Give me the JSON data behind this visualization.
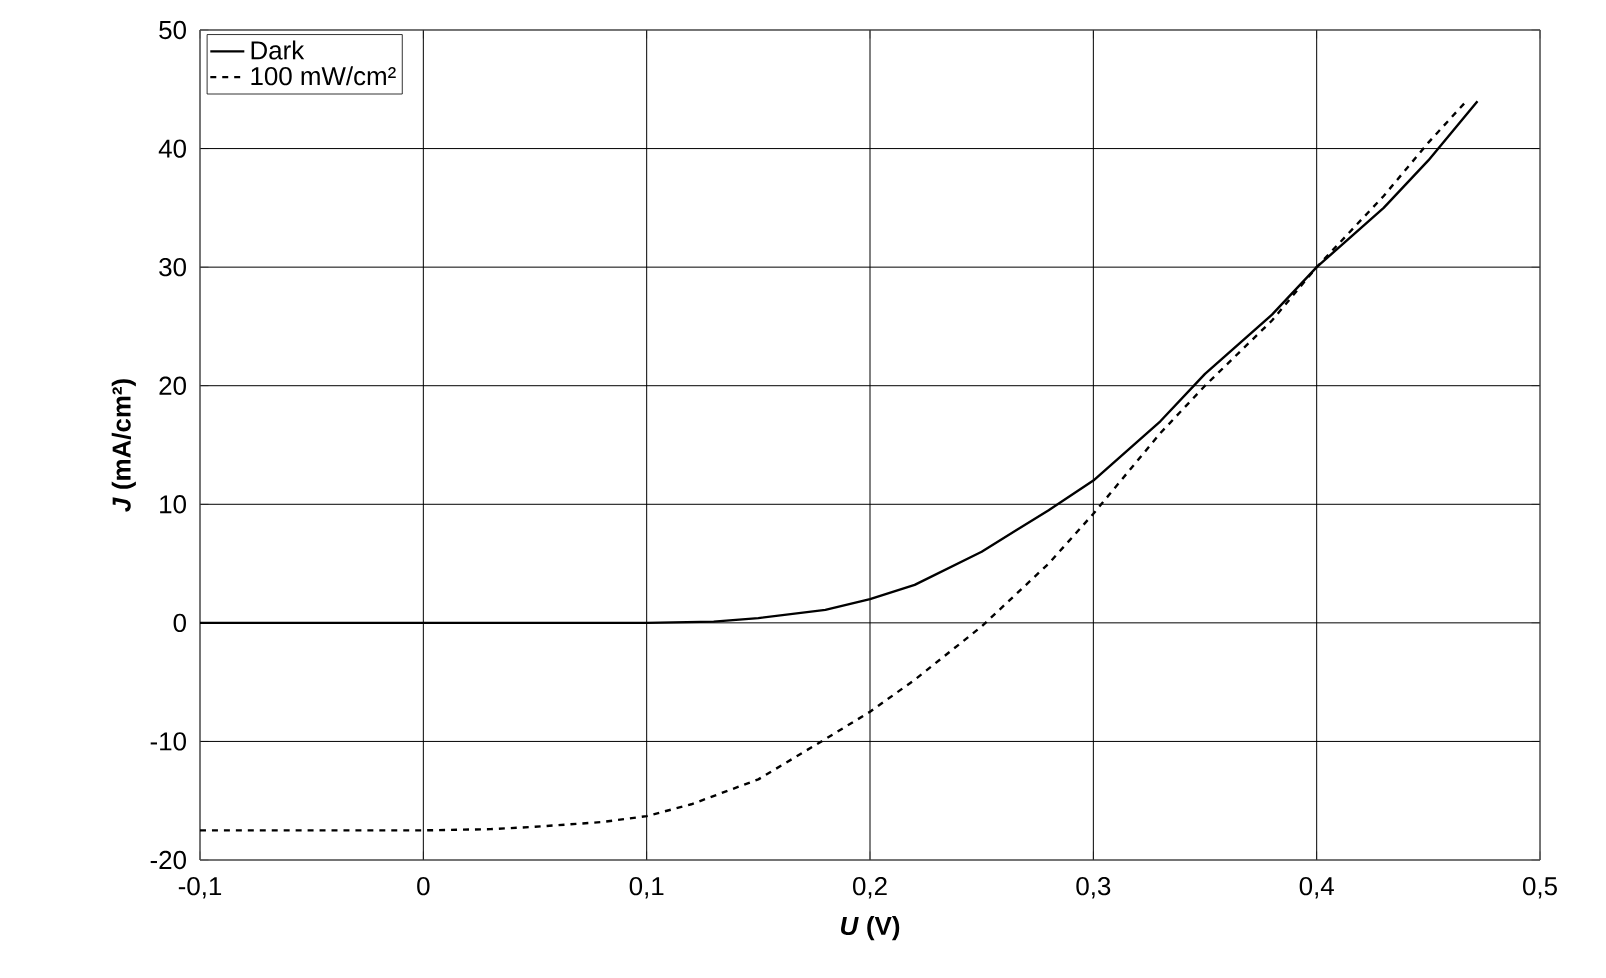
{
  "chart_data": {
    "type": "line",
    "xlabel": "*U* (V)",
    "ylabel": "*J* (mA/cm²)",
    "xlim": [
      -0.1,
      0.5
    ],
    "ylim": [
      -20,
      50
    ],
    "xticks": [
      {
        "value": -0.1,
        "label": "-0,1"
      },
      0,
      {
        "value": 0.1,
        "label": "0,1"
      },
      {
        "value": 0.2,
        "label": "0,2"
      },
      {
        "value": 0.3,
        "label": "0,3"
      },
      {
        "value": 0.4,
        "label": "0,4"
      },
      {
        "value": 0.5,
        "label": "0,5"
      }
    ],
    "yticks": [
      -20,
      -10,
      0,
      10,
      20,
      30,
      40,
      50
    ],
    "grid": true,
    "legend": "top left",
    "marker": "none",
    "series": [
      {
        "name": "Dark",
        "color": "#000000",
        "line_style": "solid",
        "x": [
          -0.1,
          0,
          0.1,
          0.13,
          0.15,
          0.18,
          0.2,
          0.22,
          0.25,
          0.28,
          0.3,
          0.33,
          0.35,
          0.38,
          0.4,
          0.43,
          0.45,
          0.472
        ],
        "values": [
          0,
          0,
          0,
          0.1,
          0.4,
          1.1,
          2,
          3.2,
          6,
          9.5,
          12,
          17,
          21,
          26,
          30,
          35,
          39,
          44
        ]
      },
      {
        "name": "100 mW/cm²",
        "color": "#000000",
        "line_style": "dashed",
        "x": [
          -0.1,
          -0.05,
          0,
          0.03,
          0.05,
          0.08,
          0.1,
          0.12,
          0.15,
          0.18,
          0.2,
          0.22,
          0.25,
          0.28,
          0.3,
          0.33,
          0.35,
          0.38,
          0.4,
          0.43,
          0.45,
          0.467
        ],
        "values": [
          -17.5,
          -17.5,
          -17.5,
          -17.4,
          -17.2,
          -16.8,
          -16.3,
          -15.3,
          -13.2,
          -9.8,
          -7.5,
          -4.8,
          -0.3,
          5,
          9.2,
          16,
          20,
          25.5,
          30,
          36,
          40.5,
          44
        ]
      }
    ]
  }
}
